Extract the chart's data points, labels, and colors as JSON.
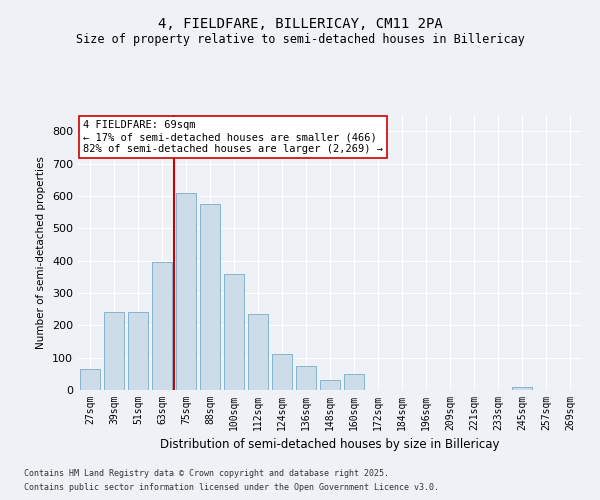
{
  "title1": "4, FIELDFARE, BILLERICAY, CM11 2PA",
  "title2": "Size of property relative to semi-detached houses in Billericay",
  "xlabel": "Distribution of semi-detached houses by size in Billericay",
  "ylabel": "Number of semi-detached properties",
  "bar_color": "#ccdce8",
  "bar_edge_color": "#7aaac8",
  "categories": [
    "27sqm",
    "39sqm",
    "51sqm",
    "63sqm",
    "75sqm",
    "88sqm",
    "100sqm",
    "112sqm",
    "124sqm",
    "136sqm",
    "148sqm",
    "160sqm",
    "172sqm",
    "184sqm",
    "196sqm",
    "209sqm",
    "221sqm",
    "233sqm",
    "245sqm",
    "257sqm",
    "269sqm"
  ],
  "values": [
    65,
    240,
    240,
    395,
    610,
    575,
    360,
    235,
    110,
    75,
    30,
    50,
    0,
    0,
    0,
    0,
    0,
    0,
    10,
    0,
    0
  ],
  "ylim": [
    0,
    850
  ],
  "yticks": [
    0,
    100,
    200,
    300,
    400,
    500,
    600,
    700,
    800
  ],
  "annotation_title": "4 FIELDFARE: 69sqm",
  "annotation_line1": "← 17% of semi-detached houses are smaller (466)",
  "annotation_line2": "82% of semi-detached houses are larger (2,269) →",
  "vline_color": "#cc0000",
  "vline_x": 3.5,
  "footer1": "Contains HM Land Registry data © Crown copyright and database right 2025.",
  "footer2": "Contains public sector information licensed under the Open Government Licence v3.0.",
  "background_color": "#eef2f6",
  "plot_background": "#eef2f6"
}
